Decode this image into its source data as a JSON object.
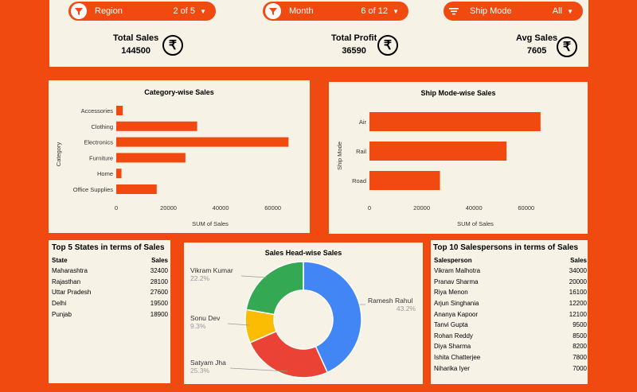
{
  "filters": [
    {
      "label": "Region",
      "value": "2 of 5"
    },
    {
      "label": "Month",
      "value": "6 of 12"
    },
    {
      "label": "Ship Mode",
      "value": "All"
    }
  ],
  "kpis": [
    {
      "label": "Total Sales",
      "value": "144500"
    },
    {
      "label": "Total Profit",
      "value": "36590"
    },
    {
      "label": "Avg Sales",
      "value": "7605"
    }
  ],
  "currency_symbol": "₹",
  "colors": {
    "accent": "#f04a10",
    "panel": "#f6f2e6",
    "blue": "#4285f4",
    "green": "#34a853",
    "yellow": "#fbbc04",
    "red": "#ea4335"
  },
  "chart_data": [
    {
      "type": "bar",
      "orientation": "horizontal",
      "title": "Category-wise Sales",
      "xlabel": "SUM of Sales",
      "ylabel": "Category",
      "categories": [
        "Accessories",
        "Clothing",
        "Electronics",
        "Furniture",
        "Home",
        "Office Supplies"
      ],
      "values": [
        2500,
        31000,
        66000,
        26500,
        2000,
        15500
      ],
      "xlim": [
        0,
        72000
      ],
      "xticks": [
        "0",
        "20000",
        "40000",
        "60000"
      ],
      "grid": false
    },
    {
      "type": "bar",
      "orientation": "horizontal",
      "title": "Ship Mode-wise Sales",
      "xlabel": "SUM of Sales",
      "ylabel": "Ship Mode",
      "categories": [
        "Air",
        "Rail",
        "Road"
      ],
      "values": [
        65500,
        52500,
        27000
      ],
      "xlim": [
        0,
        75000
      ],
      "xticks": [
        "0",
        "20000",
        "40000",
        "60000"
      ],
      "grid": false
    },
    {
      "type": "pie",
      "donut": true,
      "title": "Sales Head-wise Sales",
      "slices": [
        {
          "label": "Ramesh Rahul",
          "pct": "43.2%",
          "value": 43.2,
          "color": "#4285f4"
        },
        {
          "label": "Satyam Jha",
          "pct": "25.3%",
          "value": 25.3,
          "color": "#ea4335"
        },
        {
          "label": "Sonu Dev",
          "pct": "9.3%",
          "value": 9.3,
          "color": "#fbbc04"
        },
        {
          "label": "Vikram Kumar",
          "pct": "22.2%",
          "value": 22.2,
          "color": "#34a853"
        }
      ]
    }
  ],
  "states_table": {
    "title": "Top 5 States in terms of Sales",
    "headers": [
      "State",
      "Sales"
    ],
    "rows": [
      [
        "Maharashtra",
        "32400"
      ],
      [
        "Rajasthan",
        "28100"
      ],
      [
        "Uttar Pradesh",
        "27600"
      ],
      [
        "Delhi",
        "19500"
      ],
      [
        "Punjab",
        "18900"
      ]
    ]
  },
  "salespersons_table": {
    "title": "Top 10 Salespersons in terms of Sales",
    "headers": [
      "Salesperson",
      "Sales"
    ],
    "rows": [
      [
        "Vikram Malhotra",
        "34000"
      ],
      [
        "Pranav Sharma",
        "20000"
      ],
      [
        "Riya Menon",
        "16100"
      ],
      [
        "Arjun Singhania",
        "12200"
      ],
      [
        "Ananya Kapoor",
        "12100"
      ],
      [
        "Tanvi Gupta",
        "9500"
      ],
      [
        "Rohan Reddy",
        "8500"
      ],
      [
        "Diya Sharma",
        "8200"
      ],
      [
        "Ishita Chatterjee",
        "7800"
      ],
      [
        "Niharika Iyer",
        "7000"
      ]
    ]
  }
}
